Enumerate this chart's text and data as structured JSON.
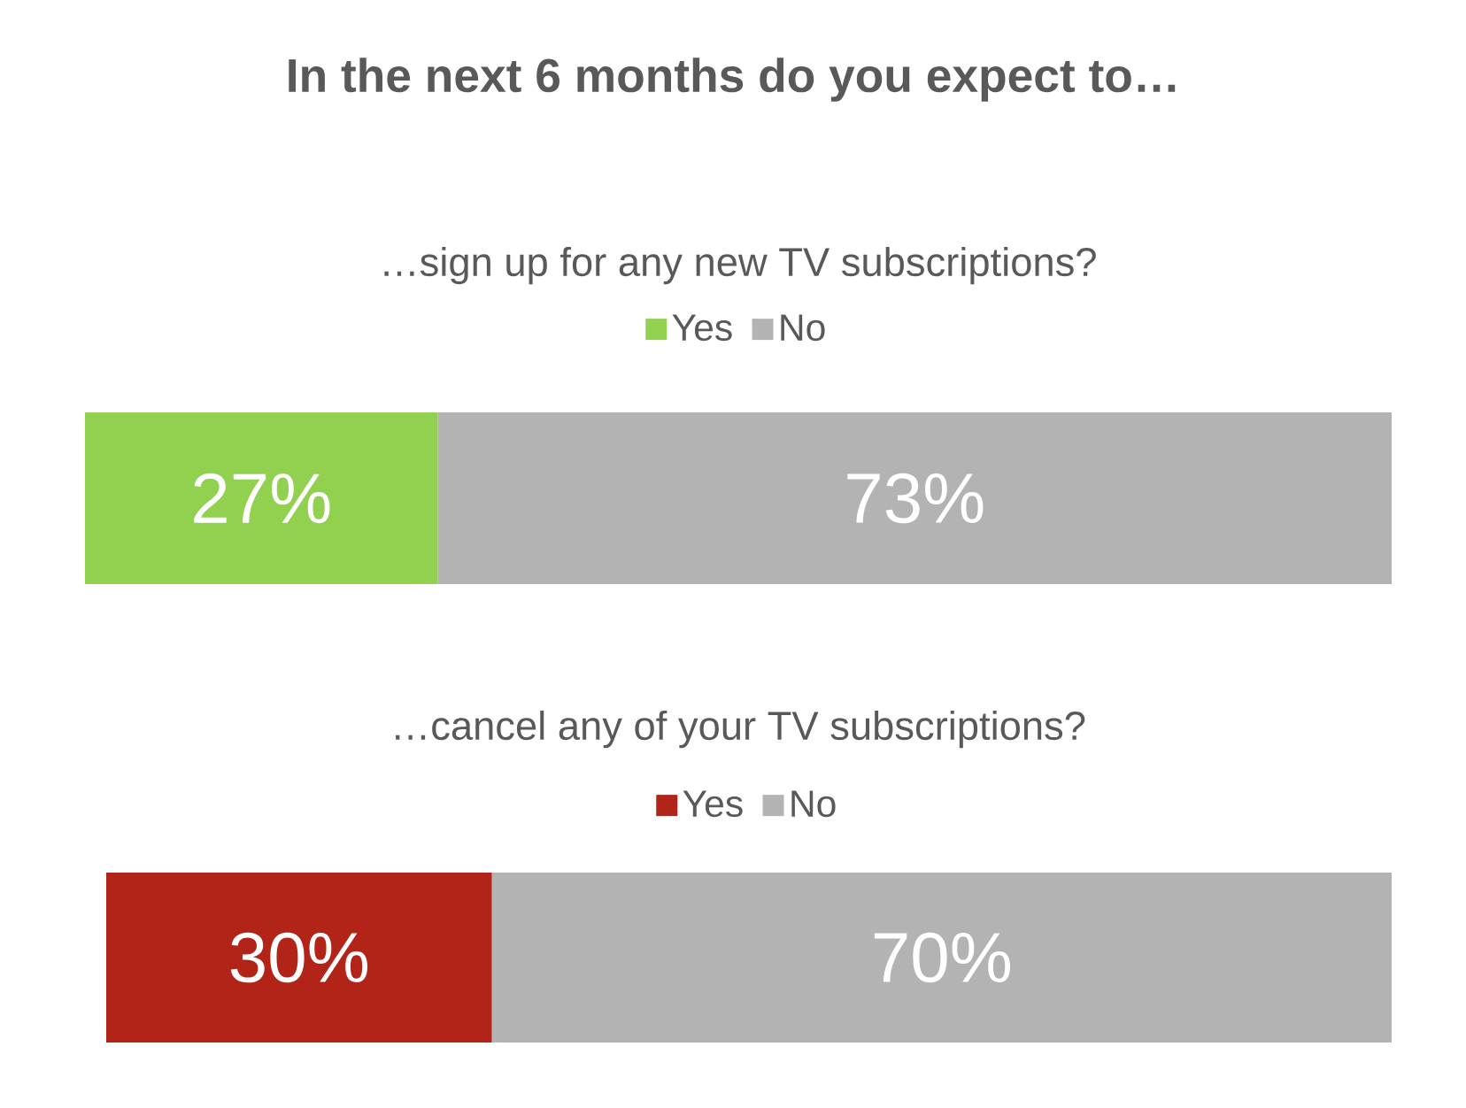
{
  "chart_data": [
    {
      "type": "bar",
      "orientation": "horizontal",
      "stacked": true,
      "title": "In the next 6 months do you expect to…",
      "subtitle": "…sign up for any new TV subscriptions?",
      "categories": [
        null
      ],
      "legend": "top",
      "series": [
        {
          "name": "Yes",
          "color": "#92d050",
          "values": [
            27
          ],
          "value_labels": [
            "27%"
          ]
        },
        {
          "name": "No",
          "color": "#b3b3b3",
          "values": [
            73
          ],
          "value_labels": [
            "73%"
          ]
        }
      ]
    },
    {
      "type": "bar",
      "orientation": "horizontal",
      "stacked": true,
      "subtitle": "…cancel any of your TV subscriptions?",
      "categories": [
        null
      ],
      "legend": "top",
      "series": [
        {
          "name": "Yes",
          "color": "#b22418",
          "values": [
            30
          ],
          "value_labels": [
            "30%"
          ]
        },
        {
          "name": "No",
          "color": "#b3b3b3",
          "values": [
            70
          ],
          "value_labels": [
            "70%"
          ]
        }
      ]
    }
  ]
}
